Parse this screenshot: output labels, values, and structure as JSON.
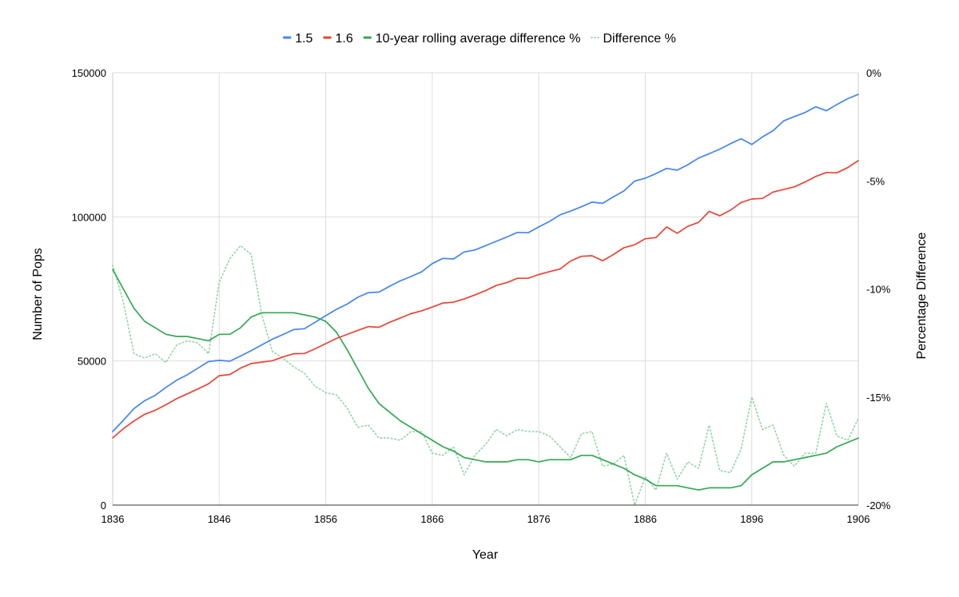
{
  "chart_data": {
    "type": "line",
    "title": "",
    "xlabel": "Year",
    "ylabel_left": "Number of Pops",
    "ylabel_right": "Percentage Difference",
    "legend_position": "top-center",
    "x_range": [
      1836,
      1906
    ],
    "y_left_range": [
      0,
      150000
    ],
    "y_right_range": [
      -20,
      0
    ],
    "x_ticks": [
      1836,
      1846,
      1856,
      1866,
      1876,
      1886,
      1896,
      1906
    ],
    "x_tick_labels": [
      "1836",
      "1846",
      "1856",
      "1866",
      "1876",
      "1886",
      "1896",
      "1906"
    ],
    "y_left_ticks": [
      0,
      50000,
      100000,
      150000
    ],
    "y_left_tick_labels": [
      "0",
      "50000",
      "100000",
      "150000"
    ],
    "y_right_ticks": [
      0,
      -5,
      -10,
      -15,
      -20
    ],
    "y_right_tick_labels": [
      "0%",
      "-5%",
      "-10%",
      "-15%",
      "-20%"
    ],
    "grid": true,
    "x_years": [
      1836,
      1837,
      1838,
      1839,
      1840,
      1841,
      1842,
      1843,
      1844,
      1845,
      1846,
      1847,
      1848,
      1849,
      1850,
      1851,
      1852,
      1853,
      1854,
      1855,
      1856,
      1857,
      1858,
      1859,
      1860,
      1861,
      1862,
      1863,
      1864,
      1865,
      1866,
      1867,
      1868,
      1869,
      1870,
      1871,
      1872,
      1873,
      1874,
      1875,
      1876,
      1877,
      1878,
      1879,
      1880,
      1881,
      1882,
      1883,
      1884,
      1885,
      1886,
      1887,
      1888,
      1889,
      1890,
      1891,
      1892,
      1893,
      1894,
      1895,
      1896,
      1897,
      1898,
      1899,
      1900,
      1901,
      1902,
      1903,
      1904,
      1905,
      1906
    ],
    "series": [
      {
        "name": "1.5",
        "axis": "left",
        "color": "#4285f4",
        "style": "solid",
        "values": [
          25500,
          29400,
          33500,
          36200,
          38100,
          40800,
          43300,
          45200,
          47500,
          49800,
          50200,
          49900,
          51700,
          53600,
          55600,
          57600,
          59200,
          60900,
          61200,
          63400,
          65700,
          67900,
          69700,
          72100,
          73700,
          73900,
          75900,
          77800,
          79300,
          80900,
          83800,
          85600,
          85400,
          87800,
          88500,
          90000,
          91500,
          93000,
          94600,
          94500,
          96500,
          98400,
          100700,
          102000,
          103500,
          105100,
          104700,
          106900,
          109000,
          112400,
          113400,
          115000,
          116800,
          116200,
          118100,
          120400,
          121900,
          123500,
          125400,
          127100,
          125100,
          127700,
          129900,
          133300,
          134800,
          136200,
          138200,
          136800,
          139000,
          141000,
          142500
        ]
      },
      {
        "name": "1.6",
        "axis": "left",
        "color": "#ea4335",
        "style": "solid",
        "values": [
          23300,
          26500,
          29200,
          31500,
          32900,
          34800,
          36900,
          38600,
          40300,
          42100,
          44900,
          45300,
          47500,
          49100,
          49600,
          50100,
          51400,
          52500,
          52600,
          54200,
          56000,
          57800,
          59200,
          60600,
          61900,
          61700,
          63400,
          64900,
          66400,
          67400,
          68700,
          70100,
          70400,
          71500,
          72900,
          74400,
          76200,
          77200,
          78700,
          78700,
          80000,
          81000,
          81900,
          84700,
          86300,
          86500,
          84800,
          86900,
          89300,
          90300,
          92400,
          92800,
          96500,
          94300,
          96700,
          98100,
          101900,
          100400,
          102300,
          105000,
          106200,
          106400,
          108600,
          109500,
          110400,
          112100,
          114000,
          115400,
          115300,
          117100,
          119500
        ]
      },
      {
        "name": "10-year rolling average difference %",
        "axis": "right",
        "color": "#34a853",
        "style": "solid",
        "values": [
          -9.1,
          -10.0,
          -10.9,
          -11.5,
          -11.8,
          -12.1,
          -12.2,
          -12.2,
          -12.3,
          -12.4,
          -12.1,
          -12.1,
          -11.8,
          -11.3,
          -11.1,
          -11.1,
          -11.1,
          -11.1,
          -11.2,
          -11.3,
          -11.5,
          -12.0,
          -12.8,
          -13.7,
          -14.6,
          -15.3,
          -15.7,
          -16.1,
          -16.4,
          -16.7,
          -17.0,
          -17.3,
          -17.5,
          -17.8,
          -17.9,
          -18.0,
          -18.0,
          -18.0,
          -17.9,
          -17.9,
          -18.0,
          -17.9,
          -17.9,
          -17.9,
          -17.7,
          -17.7,
          -17.9,
          -18.1,
          -18.3,
          -18.6,
          -18.8,
          -19.1,
          -19.1,
          -19.1,
          -19.2,
          -19.3,
          -19.2,
          -19.2,
          -19.2,
          -19.1,
          -18.6,
          -18.3,
          -18.0,
          -18.0,
          -17.9,
          -17.8,
          -17.7,
          -17.6,
          -17.3,
          -17.1,
          -16.9
        ]
      },
      {
        "name": "Difference %",
        "axis": "right",
        "color": "#8fd4a4",
        "style": "dotted",
        "values": [
          -8.9,
          -10.6,
          -13.0,
          -13.2,
          -13.0,
          -13.4,
          -12.6,
          -12.4,
          -12.5,
          -13.0,
          -9.7,
          -8.6,
          -8.0,
          -8.4,
          -11.2,
          -12.9,
          -13.2,
          -13.6,
          -13.9,
          -14.5,
          -14.8,
          -14.9,
          -15.5,
          -16.4,
          -16.3,
          -16.9,
          -16.9,
          -17.0,
          -16.6,
          -16.6,
          -17.6,
          -17.7,
          -17.3,
          -18.6,
          -17.7,
          -17.2,
          -16.5,
          -16.8,
          -16.5,
          -16.6,
          -16.6,
          -16.8,
          -17.3,
          -17.8,
          -16.7,
          -16.6,
          -18.2,
          -18.1,
          -17.7,
          -20.0,
          -18.7,
          -19.3,
          -17.6,
          -18.8,
          -18.0,
          -18.3,
          -16.3,
          -18.4,
          -18.5,
          -17.4,
          -15.0,
          -16.5,
          -16.3,
          -17.7,
          -18.2,
          -17.6,
          -17.6,
          -15.3,
          -16.8,
          -17.0,
          -16.0
        ]
      }
    ]
  }
}
